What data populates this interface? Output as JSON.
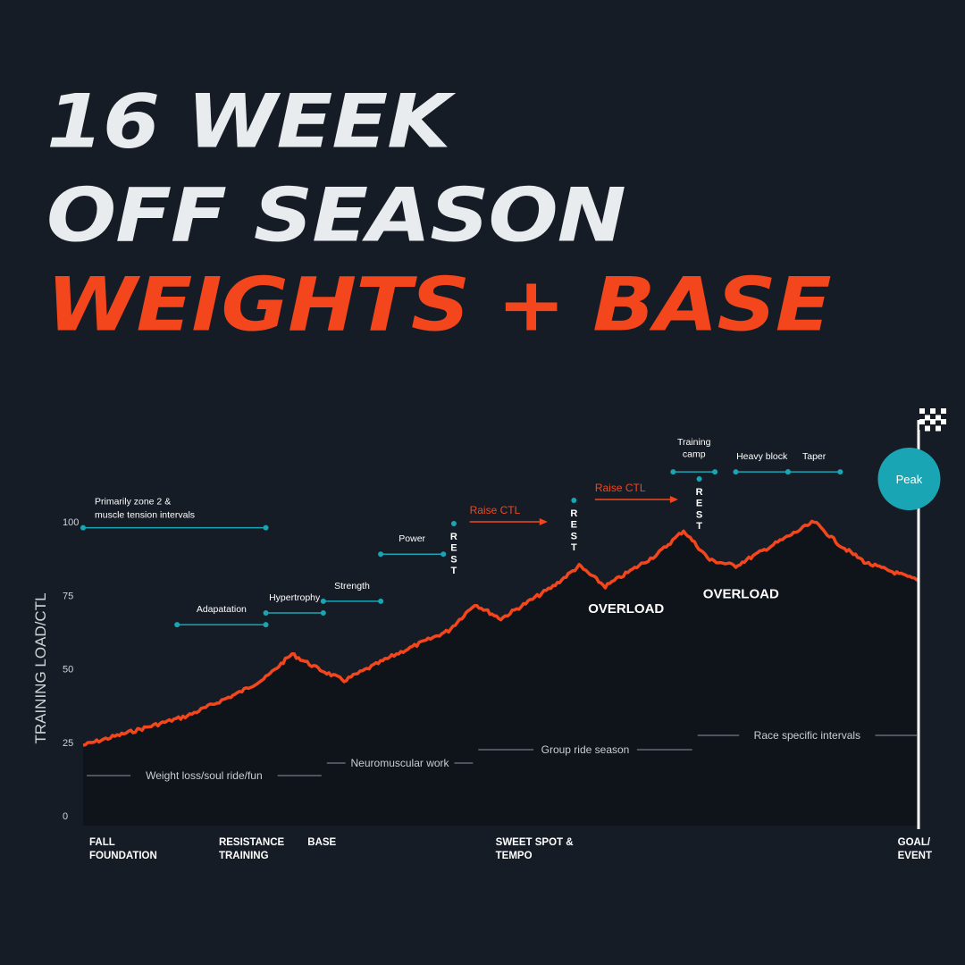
{
  "title": {
    "line1": "16 WEEK",
    "line2": "OFF SEASON",
    "line3": "WEIGHTS + BASE"
  },
  "colors": {
    "background": "#161c25",
    "title": "#e8ecee",
    "accent": "#f4461c",
    "teal": "#1aa5b4",
    "area": "#0f131a"
  },
  "chart_data": {
    "type": "area",
    "ylabel": "TRAINING LOAD/CTL",
    "y_ticks": [
      0,
      25,
      50,
      75,
      100
    ],
    "ylim": [
      0,
      100
    ],
    "xlim": [
      0,
      16
    ],
    "x": [
      0,
      1,
      2,
      3,
      3.5,
      4,
      4.5,
      5,
      6,
      7,
      7.5,
      8,
      9,
      9.5,
      10,
      11,
      11.5,
      12,
      12.5,
      13,
      14,
      14.5,
      15,
      15.5,
      16
    ],
    "y": [
      24,
      29,
      34,
      42,
      47,
      55,
      50,
      46,
      55,
      63,
      72,
      67,
      78,
      85,
      78,
      89,
      97,
      87,
      85,
      90,
      100,
      92,
      86,
      83,
      80
    ],
    "x_labels": [
      {
        "label": "FALL\nFOUNDATION",
        "x": 0
      },
      {
        "label": "RESISTANCE\nTRAINING",
        "x": 2.6
      },
      {
        "label": "BASE",
        "x": 4.3
      },
      {
        "label": "SWEET SPOT &\nTEMPO",
        "x": 7.9
      },
      {
        "label": "GOAL/\nEVENT",
        "x": 15.6
      }
    ],
    "bottom_phases": [
      {
        "label": "Weight loss/soul ride/fun",
        "x0": 0,
        "x1": 4.6
      },
      {
        "label": "Neuromuscular work",
        "x0": 4.6,
        "x1": 7.5
      },
      {
        "label": "Group ride season",
        "x0": 7.5,
        "x1": 11.7
      },
      {
        "label": "Race specific intervals",
        "x0": 11.7,
        "x1": 16
      }
    ],
    "training_blocks": [
      {
        "label": "Primarily zone 2 &\nmuscle tension intervals",
        "x0": 0,
        "x1": 3.5,
        "level": 98
      },
      {
        "label": "Adapatation",
        "x0": 1.8,
        "x1": 3.5,
        "level": 65
      },
      {
        "label": "Hypertrophy",
        "x0": 3.5,
        "x1": 4.6,
        "level": 69
      },
      {
        "label": "Strength",
        "x0": 4.6,
        "x1": 5.7,
        "level": 73
      },
      {
        "label": "Power",
        "x0": 5.7,
        "x1": 6.9,
        "level": 89
      },
      {
        "label": "Training\ncamp",
        "x0": 11.3,
        "x1": 12.1,
        "level": 117
      },
      {
        "label": "Heavy block",
        "x0": 12.5,
        "x1": 13.5,
        "level": 117
      },
      {
        "label": "Taper",
        "x0": 13.5,
        "x1": 14.5,
        "level": 117
      }
    ],
    "rest_weeks": [
      {
        "label": "REST",
        "x": 7.1
      },
      {
        "label": "REST",
        "x": 9.4
      },
      {
        "label": "REST",
        "x": 11.8
      }
    ],
    "raise_ctl": [
      {
        "label": "Raise CTL",
        "x0": 7.3,
        "x1": 9.1,
        "y": 97
      },
      {
        "label": "Raise CTL",
        "x0": 9.7,
        "x1": 11.6,
        "y": 107
      }
    ],
    "overload_labels": [
      {
        "label": "OVERLOAD",
        "x": 10.4,
        "y": 69
      },
      {
        "label": "OVERLOAD",
        "x": 12.6,
        "y": 74
      }
    ],
    "peak": {
      "label": "Peak",
      "x": 15.7,
      "y": 115
    },
    "legend": "none",
    "grid": false
  }
}
